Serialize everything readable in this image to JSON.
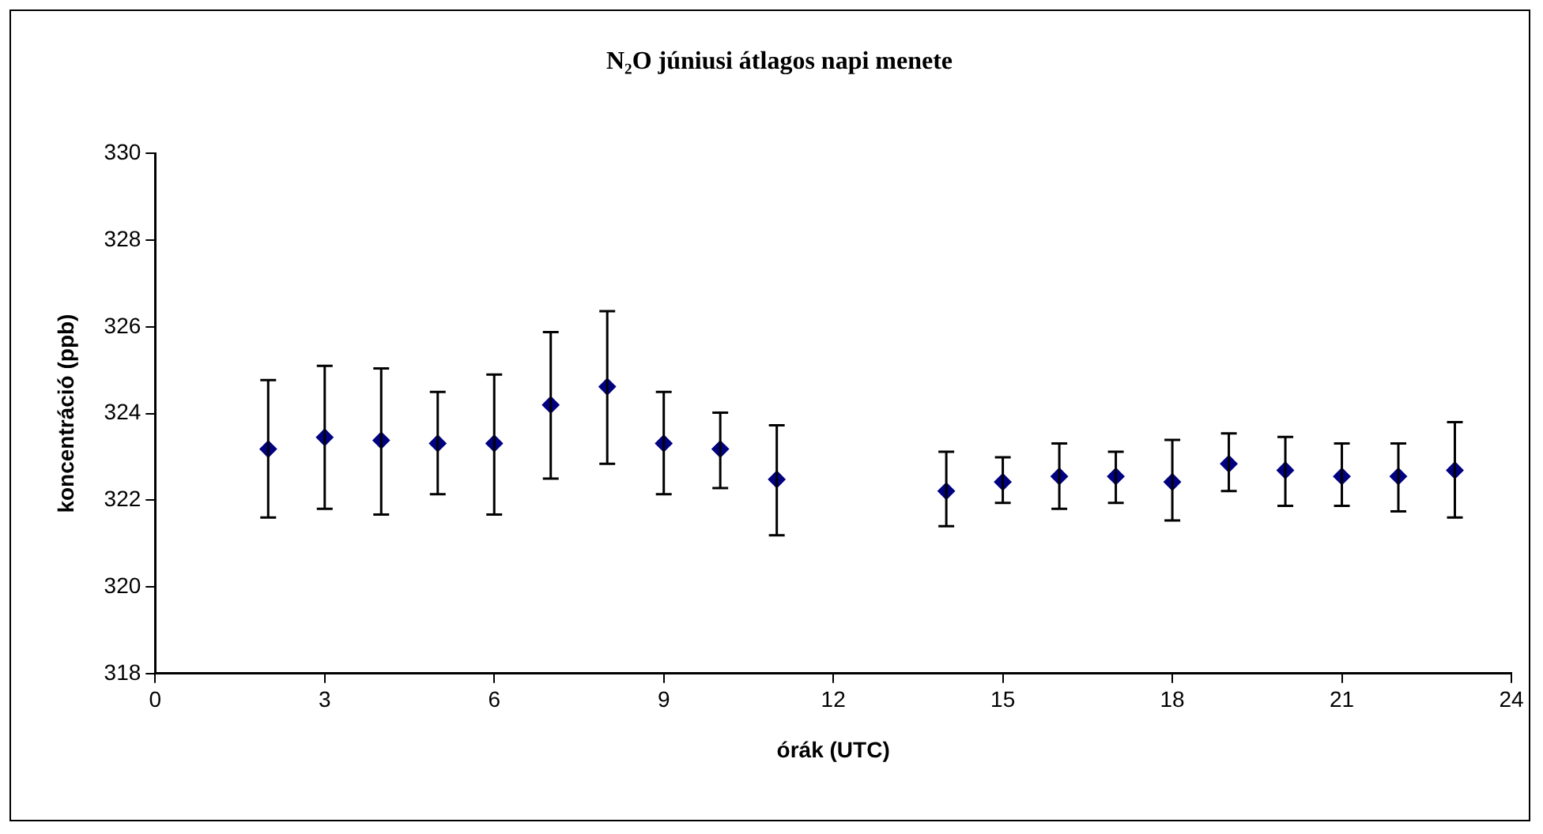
{
  "chart_data": {
    "type": "scatter",
    "title": "N₂O júniusi átlagos napi menete",
    "xlabel": "órák (UTC)",
    "ylabel": "koncentráció (ppb)",
    "x": [
      2,
      3,
      4,
      5,
      6,
      7,
      8,
      9,
      10,
      11,
      14,
      15,
      16,
      17,
      18,
      19,
      20,
      21,
      22,
      23
    ],
    "values": [
      323.18,
      323.45,
      323.38,
      323.31,
      323.31,
      324.2,
      324.62,
      323.31,
      323.18,
      322.48,
      322.21,
      322.42,
      322.55,
      322.55,
      322.42,
      322.84,
      322.69,
      322.55,
      322.55,
      322.69
    ],
    "errors": [
      [
        321.6,
        324.77
      ],
      [
        321.8,
        325.1
      ],
      [
        321.67,
        325.04
      ],
      [
        322.14,
        324.5
      ],
      [
        321.67,
        324.9
      ],
      [
        322.5,
        325.88
      ],
      [
        322.84,
        326.36
      ],
      [
        322.14,
        324.5
      ],
      [
        322.28,
        324.02
      ],
      [
        321.19,
        323.73
      ],
      [
        321.4,
        323.12
      ],
      [
        321.94,
        322.99
      ],
      [
        321.8,
        323.31
      ],
      [
        321.94,
        323.12
      ],
      [
        321.53,
        323.39
      ],
      [
        322.21,
        323.54
      ],
      [
        321.87,
        323.46
      ],
      [
        321.87,
        323.31
      ],
      [
        321.74,
        323.31
      ],
      [
        321.6,
        323.8
      ]
    ],
    "color": "#000080",
    "marker": "diamond",
    "grid": false,
    "xlim": [
      0,
      24
    ],
    "xticks": [
      0,
      3,
      6,
      9,
      12,
      15,
      18,
      21,
      24
    ],
    "ylim": [
      318,
      330
    ],
    "yticks": [
      318,
      320,
      322,
      324,
      326,
      328,
      330
    ]
  }
}
